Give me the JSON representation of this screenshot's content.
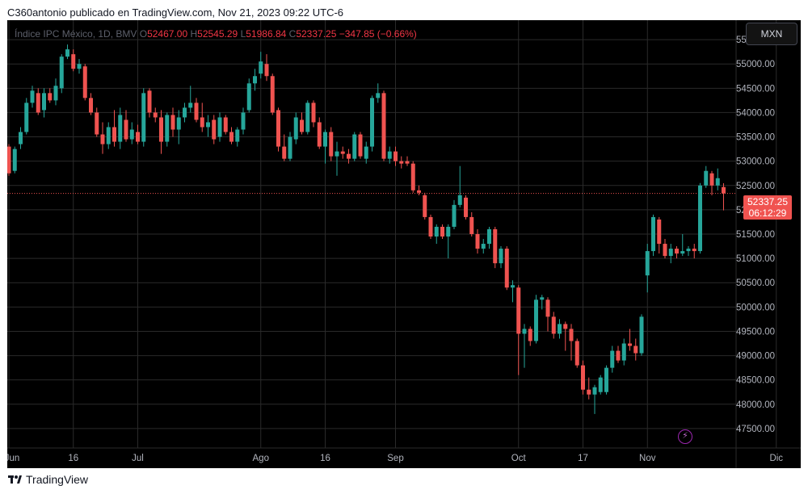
{
  "header": {
    "text": "C360antonio publicado en TradingView.com, Nov 21, 2023 09:22 UTC-6"
  },
  "legend": {
    "symbol": "Índice IPC México, 1D, BMV",
    "o_label": "O",
    "o": "52467.00",
    "h_label": "H",
    "h": "52545.29",
    "l_label": "L",
    "l": "51986.84",
    "c_label": "C",
    "c": "52337.25",
    "change": "−347.85 (−0.66%)"
  },
  "currency_button": "MXN",
  "last_price": {
    "price": "52337.25",
    "countdown": "06:12:29"
  },
  "footer": {
    "brand": "TradingView"
  },
  "colors": {
    "up": "#26a69a",
    "down": "#ef5350",
    "background": "#000000",
    "grid": "#2a2a2a",
    "text": "#b2b5be"
  },
  "chart_data": {
    "type": "candlestick",
    "title": "",
    "ylim": [
      47100,
      55900
    ],
    "y_ticks": [
      47500,
      48000,
      48500,
      49000,
      49500,
      50000,
      50500,
      51000,
      51500,
      52000,
      52500,
      53000,
      53500,
      54000,
      54500,
      55000,
      55500
    ],
    "y_tick_labels": [
      "47500.00",
      "48000.00",
      "48500.00",
      "49000.00",
      "49500.00",
      "50000.00",
      "50500.00",
      "51000.00",
      "51500.00",
      "52000.00",
      "52500.00",
      "53000.00",
      "53500.00",
      "54000.00",
      "54500.00",
      "55000.00",
      "55500.00"
    ],
    "x_ticks": [
      {
        "label": "Jun",
        "date": "2023-06-01"
      },
      {
        "label": "16",
        "date": "2023-06-16"
      },
      {
        "label": "Jul",
        "date": "2023-07-03"
      },
      {
        "label": "Ago",
        "date": "2023-08-01"
      },
      {
        "label": "16",
        "date": "2023-08-16"
      },
      {
        "label": "Sep",
        "date": "2023-09-01"
      },
      {
        "label": "Oct",
        "date": "2023-10-02"
      },
      {
        "label": "17",
        "date": "2023-10-17"
      },
      {
        "label": "Nov",
        "date": "2023-11-01"
      },
      {
        "label": "Dic",
        "date": "2023-12-01"
      }
    ],
    "last_price": 52337.25,
    "candles": [
      {
        "o": 53300,
        "h": 53350,
        "l": 52700,
        "c": 52750
      },
      {
        "o": 52800,
        "h": 53300,
        "l": 52750,
        "c": 53250
      },
      {
        "o": 53350,
        "h": 53700,
        "l": 53250,
        "c": 53600
      },
      {
        "o": 53600,
        "h": 54300,
        "l": 53550,
        "c": 54200
      },
      {
        "o": 54200,
        "h": 54550,
        "l": 54100,
        "c": 54450
      },
      {
        "o": 54400,
        "h": 54500,
        "l": 53950,
        "c": 54000
      },
      {
        "o": 54050,
        "h": 54500,
        "l": 53900,
        "c": 54400
      },
      {
        "o": 54400,
        "h": 54500,
        "l": 54200,
        "c": 54250
      },
      {
        "o": 54250,
        "h": 54700,
        "l": 54150,
        "c": 54550
      },
      {
        "o": 54500,
        "h": 55200,
        "l": 54400,
        "c": 55150
      },
      {
        "o": 55150,
        "h": 55400,
        "l": 55100,
        "c": 55300
      },
      {
        "o": 55200,
        "h": 55300,
        "l": 54850,
        "c": 54900
      },
      {
        "o": 54900,
        "h": 55100,
        "l": 54800,
        "c": 55000
      },
      {
        "o": 54950,
        "h": 55000,
        "l": 54250,
        "c": 54300
      },
      {
        "o": 54300,
        "h": 54400,
        "l": 53950,
        "c": 54000
      },
      {
        "o": 54000,
        "h": 54100,
        "l": 53500,
        "c": 53550
      },
      {
        "o": 53550,
        "h": 53800,
        "l": 53150,
        "c": 53350
      },
      {
        "o": 53350,
        "h": 53800,
        "l": 53250,
        "c": 53700
      },
      {
        "o": 53700,
        "h": 54050,
        "l": 53300,
        "c": 53400
      },
      {
        "o": 53400,
        "h": 54100,
        "l": 53250,
        "c": 53950
      },
      {
        "o": 53850,
        "h": 54050,
        "l": 53400,
        "c": 53450
      },
      {
        "o": 53450,
        "h": 53800,
        "l": 53350,
        "c": 53650
      },
      {
        "o": 53600,
        "h": 53750,
        "l": 53350,
        "c": 53400
      },
      {
        "o": 53400,
        "h": 54500,
        "l": 53300,
        "c": 54400
      },
      {
        "o": 54450,
        "h": 54500,
        "l": 53900,
        "c": 54000
      },
      {
        "o": 54000,
        "h": 54100,
        "l": 53800,
        "c": 53900
      },
      {
        "o": 53900,
        "h": 54050,
        "l": 53150,
        "c": 53400
      },
      {
        "o": 53400,
        "h": 54000,
        "l": 53300,
        "c": 53950
      },
      {
        "o": 53950,
        "h": 54100,
        "l": 53500,
        "c": 53650
      },
      {
        "o": 53650,
        "h": 54050,
        "l": 53350,
        "c": 53900
      },
      {
        "o": 53900,
        "h": 54200,
        "l": 53800,
        "c": 54100
      },
      {
        "o": 54100,
        "h": 54550,
        "l": 54000,
        "c": 54200
      },
      {
        "o": 54200,
        "h": 54300,
        "l": 53800,
        "c": 53850
      },
      {
        "o": 53900,
        "h": 54200,
        "l": 53600,
        "c": 53700
      },
      {
        "o": 53700,
        "h": 53950,
        "l": 53500,
        "c": 53800
      },
      {
        "o": 53850,
        "h": 53950,
        "l": 53350,
        "c": 53450
      },
      {
        "o": 53500,
        "h": 54000,
        "l": 53400,
        "c": 53900
      },
      {
        "o": 53900,
        "h": 53950,
        "l": 53550,
        "c": 53600
      },
      {
        "o": 53600,
        "h": 53700,
        "l": 53350,
        "c": 53400
      },
      {
        "o": 53400,
        "h": 53700,
        "l": 53300,
        "c": 53650
      },
      {
        "o": 53650,
        "h": 54100,
        "l": 53550,
        "c": 54000
      },
      {
        "o": 54050,
        "h": 54700,
        "l": 54000,
        "c": 54600
      },
      {
        "o": 54600,
        "h": 54900,
        "l": 54450,
        "c": 54750
      },
      {
        "o": 54800,
        "h": 55250,
        "l": 54700,
        "c": 55050
      },
      {
        "o": 55000,
        "h": 55200,
        "l": 54650,
        "c": 54750
      },
      {
        "o": 54750,
        "h": 54800,
        "l": 53950,
        "c": 54000
      },
      {
        "o": 54050,
        "h": 54100,
        "l": 53200,
        "c": 53300
      },
      {
        "o": 53300,
        "h": 53550,
        "l": 53000,
        "c": 53050
      },
      {
        "o": 53050,
        "h": 53600,
        "l": 53000,
        "c": 53500
      },
      {
        "o": 53450,
        "h": 54000,
        "l": 53350,
        "c": 53900
      },
      {
        "o": 53850,
        "h": 54000,
        "l": 53550,
        "c": 53600
      },
      {
        "o": 53600,
        "h": 54250,
        "l": 53550,
        "c": 54200
      },
      {
        "o": 54200,
        "h": 54250,
        "l": 53700,
        "c": 53800
      },
      {
        "o": 53800,
        "h": 53900,
        "l": 53250,
        "c": 53300
      },
      {
        "o": 53300,
        "h": 53650,
        "l": 52950,
        "c": 53600
      },
      {
        "o": 53600,
        "h": 53700,
        "l": 53000,
        "c": 53100
      },
      {
        "o": 53100,
        "h": 53400,
        "l": 52700,
        "c": 53200
      },
      {
        "o": 53200,
        "h": 53300,
        "l": 53050,
        "c": 53150
      },
      {
        "o": 53150,
        "h": 53250,
        "l": 52950,
        "c": 53050
      },
      {
        "o": 53050,
        "h": 53600,
        "l": 53000,
        "c": 53550
      },
      {
        "o": 53550,
        "h": 53600,
        "l": 53050,
        "c": 53100
      },
      {
        "o": 53050,
        "h": 53400,
        "l": 52950,
        "c": 53300
      },
      {
        "o": 53300,
        "h": 54350,
        "l": 53200,
        "c": 54300
      },
      {
        "o": 54300,
        "h": 54600,
        "l": 54200,
        "c": 54400
      },
      {
        "o": 54400,
        "h": 54450,
        "l": 53000,
        "c": 53050
      },
      {
        "o": 53050,
        "h": 53300,
        "l": 52950,
        "c": 53200
      },
      {
        "o": 53200,
        "h": 53300,
        "l": 52900,
        "c": 53000
      },
      {
        "o": 53000,
        "h": 53100,
        "l": 52850,
        "c": 52950
      },
      {
        "o": 53000,
        "h": 53100,
        "l": 52900,
        "c": 52950
      },
      {
        "o": 52950,
        "h": 53000,
        "l": 52350,
        "c": 52400
      },
      {
        "o": 52400,
        "h": 52500,
        "l": 52300,
        "c": 52350
      },
      {
        "o": 52300,
        "h": 52350,
        "l": 51800,
        "c": 51850
      },
      {
        "o": 51850,
        "h": 51900,
        "l": 51400,
        "c": 51450
      },
      {
        "o": 51450,
        "h": 51700,
        "l": 51300,
        "c": 51650
      },
      {
        "o": 51650,
        "h": 51700,
        "l": 51400,
        "c": 51450
      },
      {
        "o": 51450,
        "h": 51700,
        "l": 51000,
        "c": 51650
      },
      {
        "o": 51650,
        "h": 52200,
        "l": 51600,
        "c": 52100
      },
      {
        "o": 52100,
        "h": 52900,
        "l": 52050,
        "c": 52300
      },
      {
        "o": 52250,
        "h": 52300,
        "l": 51800,
        "c": 51850
      },
      {
        "o": 51850,
        "h": 51950,
        "l": 51450,
        "c": 51500
      },
      {
        "o": 51500,
        "h": 51600,
        "l": 51100,
        "c": 51200
      },
      {
        "o": 51200,
        "h": 51400,
        "l": 51100,
        "c": 51300
      },
      {
        "o": 51300,
        "h": 51650,
        "l": 51200,
        "c": 51600
      },
      {
        "o": 51600,
        "h": 51650,
        "l": 50800,
        "c": 50900
      },
      {
        "o": 50900,
        "h": 51250,
        "l": 50800,
        "c": 51200
      },
      {
        "o": 51200,
        "h": 51250,
        "l": 50350,
        "c": 50400
      },
      {
        "o": 50400,
        "h": 50550,
        "l": 50100,
        "c": 50450
      },
      {
        "o": 50400,
        "h": 50450,
        "l": 48600,
        "c": 49450
      },
      {
        "o": 49450,
        "h": 49650,
        "l": 48750,
        "c": 49550
      },
      {
        "o": 49550,
        "h": 49600,
        "l": 49200,
        "c": 49300
      },
      {
        "o": 49300,
        "h": 50250,
        "l": 49250,
        "c": 50150
      },
      {
        "o": 50150,
        "h": 50250,
        "l": 49950,
        "c": 50200
      },
      {
        "o": 50150,
        "h": 50200,
        "l": 49500,
        "c": 49800
      },
      {
        "o": 49800,
        "h": 49900,
        "l": 49350,
        "c": 49450
      },
      {
        "o": 49450,
        "h": 49750,
        "l": 49350,
        "c": 49650
      },
      {
        "o": 49650,
        "h": 49700,
        "l": 49100,
        "c": 49550
      },
      {
        "o": 49550,
        "h": 49650,
        "l": 48900,
        "c": 49300
      },
      {
        "o": 49300,
        "h": 49350,
        "l": 48750,
        "c": 48800
      },
      {
        "o": 48800,
        "h": 48900,
        "l": 48200,
        "c": 48300
      },
      {
        "o": 48300,
        "h": 48550,
        "l": 48100,
        "c": 48200
      },
      {
        "o": 48200,
        "h": 48400,
        "l": 47800,
        "c": 48350
      },
      {
        "o": 48250,
        "h": 48600,
        "l": 48200,
        "c": 48550
      },
      {
        "o": 48250,
        "h": 48800,
        "l": 48200,
        "c": 48750
      },
      {
        "o": 48750,
        "h": 49200,
        "l": 48650,
        "c": 49100
      },
      {
        "o": 49100,
        "h": 49200,
        "l": 48850,
        "c": 48900
      },
      {
        "o": 48900,
        "h": 49350,
        "l": 48800,
        "c": 49250
      },
      {
        "o": 49250,
        "h": 49550,
        "l": 49100,
        "c": 49200
      },
      {
        "o": 49200,
        "h": 49350,
        "l": 48900,
        "c": 49050
      },
      {
        "o": 49050,
        "h": 49850,
        "l": 49000,
        "c": 49800
      },
      {
        "o": 50650,
        "h": 51300,
        "l": 50300,
        "c": 51150
      },
      {
        "o": 51150,
        "h": 51900,
        "l": 51050,
        "c": 51850
      },
      {
        "o": 51800,
        "h": 51850,
        "l": 51100,
        "c": 51300
      },
      {
        "o": 51300,
        "h": 51400,
        "l": 51000,
        "c": 51050
      },
      {
        "o": 51050,
        "h": 51300,
        "l": 50900,
        "c": 51200
      },
      {
        "o": 51200,
        "h": 51250,
        "l": 51000,
        "c": 51100
      },
      {
        "o": 51100,
        "h": 51500,
        "l": 51050,
        "c": 51150
      },
      {
        "o": 51150,
        "h": 51250,
        "l": 51050,
        "c": 51200
      },
      {
        "o": 51200,
        "h": 51300,
        "l": 51000,
        "c": 51150
      },
      {
        "o": 51150,
        "h": 52550,
        "l": 51100,
        "c": 52500
      },
      {
        "o": 52500,
        "h": 52900,
        "l": 52450,
        "c": 52800
      },
      {
        "o": 52750,
        "h": 52800,
        "l": 52300,
        "c": 52500
      },
      {
        "o": 52500,
        "h": 52850,
        "l": 52400,
        "c": 52650
      },
      {
        "o": 52467,
        "h": 52545.29,
        "l": 51986.84,
        "c": 52337.25
      }
    ]
  }
}
